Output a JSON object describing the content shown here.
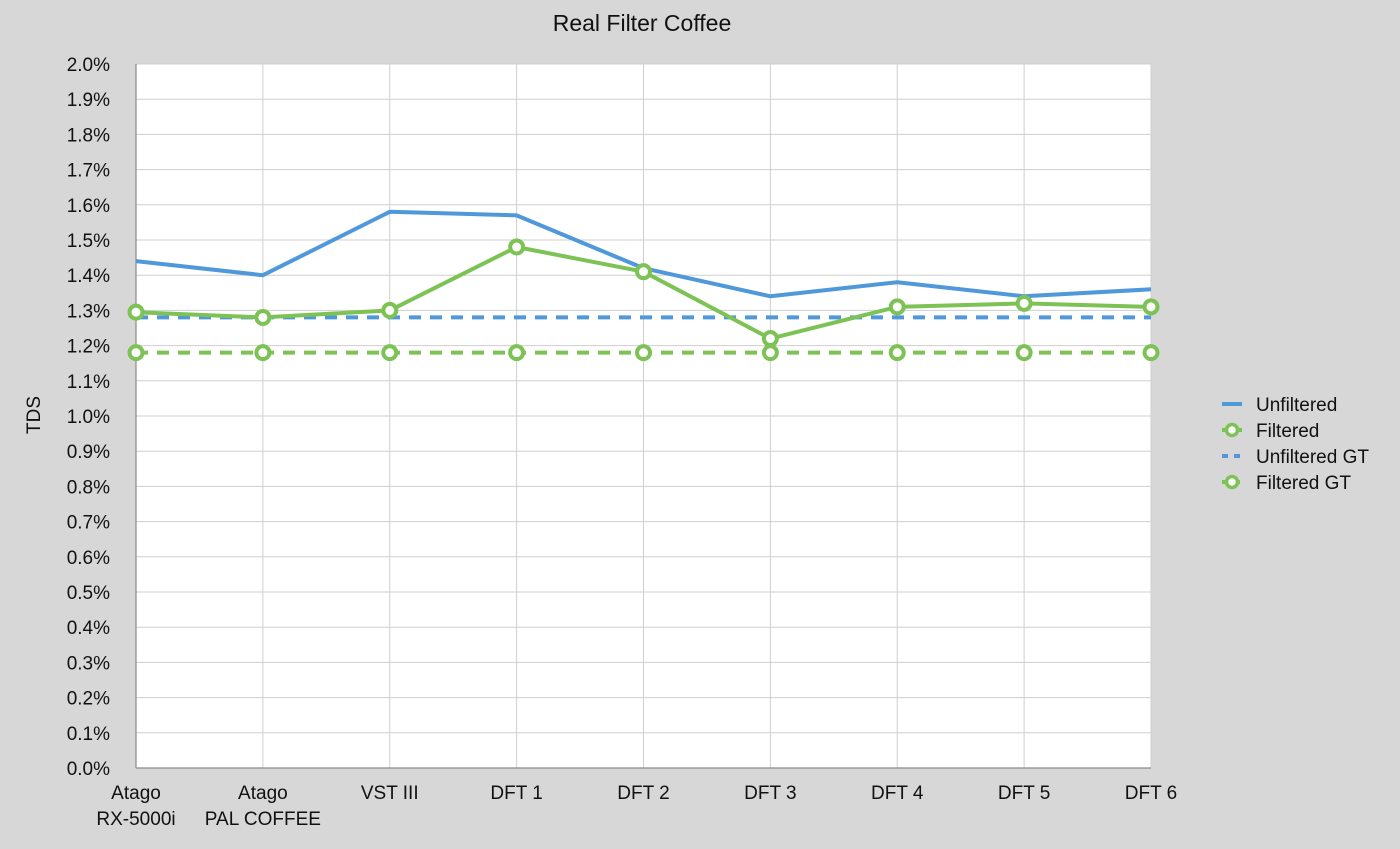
{
  "chart_data": {
    "type": "line",
    "title": "Real Filter Coffee",
    "xlabel": "",
    "ylabel": "TDS",
    "ylim": [
      0,
      2.0
    ],
    "y_tick_step": 0.1,
    "y_tick_format": "percent_1dp",
    "grid": true,
    "legend_position": "right",
    "categories": [
      [
        "Atago",
        "RX-5000i"
      ],
      [
        "Atago",
        "PAL COFFEE"
      ],
      [
        "VST III"
      ],
      [
        "DFT 1"
      ],
      [
        "DFT 2"
      ],
      [
        "DFT 3"
      ],
      [
        "DFT 4"
      ],
      [
        "DFT 5"
      ],
      [
        "DFT 6"
      ]
    ],
    "series": [
      {
        "name": "Unfiltered",
        "color": "#4f98da",
        "style": "solid",
        "marker": "none",
        "values": [
          1.44,
          1.4,
          1.58,
          1.57,
          1.42,
          1.34,
          1.38,
          1.34,
          1.36
        ]
      },
      {
        "name": "Filtered",
        "color": "#7cc255",
        "style": "solid",
        "marker": "ring",
        "values": [
          1.295,
          1.28,
          1.3,
          1.48,
          1.41,
          1.22,
          1.31,
          1.32,
          1.31
        ]
      },
      {
        "name": "Unfiltered GT",
        "color": "#4f98da",
        "style": "dashed",
        "marker": "none",
        "values": [
          1.28,
          1.28,
          1.28,
          1.28,
          1.28,
          1.28,
          1.28,
          1.28,
          1.28
        ]
      },
      {
        "name": "Filtered GT",
        "color": "#7cc255",
        "style": "dashed",
        "marker": "ring",
        "values": [
          1.18,
          1.18,
          1.18,
          1.18,
          1.18,
          1.18,
          1.18,
          1.18,
          1.18
        ]
      }
    ]
  }
}
